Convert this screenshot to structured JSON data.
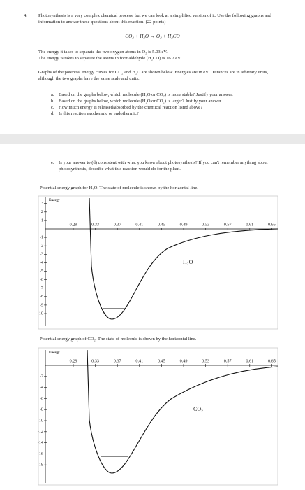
{
  "question": {
    "number": "4.",
    "text": "Photosynthesis is a very complex chemical process, but we can look at a simplified version of it. Use the following graphs and information to answer these questions about this reaction. (22 points)"
  },
  "equation": "CO₂ + H₂O → O₂ + H₂CO",
  "facts": [
    "The energy it takes to separate the two oxygen atoms in O₂ is 5.03 eV.",
    "The energy is takes to separate the atoms in formaldehyde (H₂CO) is 16.2 eV."
  ],
  "paragraph": "Graphs of the potential energy curves for CO₂ and H₂O are shown below. Energies are in eV. Distances are in arbitrary units, although the two graphs have the same scale and units.",
  "items": [
    {
      "label": "a.",
      "text": "Based on the graphs below, which molecule (H₂O or CO₂) is more stable? Justify your answer."
    },
    {
      "label": "b.",
      "text": "Based on the graphs below, which molecule (H₂O or CO₂) is larger? Justify your answer."
    },
    {
      "label": "c.",
      "text": "How much energy is released/absorbed by the chemical reaction listed above?"
    },
    {
      "label": "d.",
      "text": "Is this reaction exothermic or endothermic?"
    }
  ],
  "item_e": {
    "label": "e.",
    "text": "Is your answer to (d) consistent with what you know about photosynthesis? If you can't remember anything about photosynthesis, describe what this reaction would do for the plant."
  },
  "graphs": [
    {
      "caption": "Potential energy graph for H₂O. The state of molecule is shown by the horizontal line.",
      "y_label": "Energy",
      "molecule": "H₂O",
      "xticks": [
        0.29,
        0.33,
        0.37,
        0.41,
        0.45,
        0.49,
        0.53,
        0.57,
        0.61,
        0.65
      ],
      "yticks": [
        3,
        2,
        1,
        -1,
        -2,
        -3,
        -4,
        -5,
        -6,
        -7,
        -8,
        -9,
        -10
      ]
    },
    {
      "caption": "Potential energy graph of CO₂. The state of molecule is shown by the horizontal line.",
      "y_label": "Energy",
      "molecule": "CO₂",
      "xticks": [
        0.29,
        0.33,
        0.37,
        0.41,
        0.45,
        0.49,
        0.53,
        0.57,
        0.61,
        0.65
      ],
      "yticks": [
        -2,
        -4,
        -6,
        -8,
        -10,
        -12,
        -14,
        -16,
        -18
      ]
    }
  ]
}
